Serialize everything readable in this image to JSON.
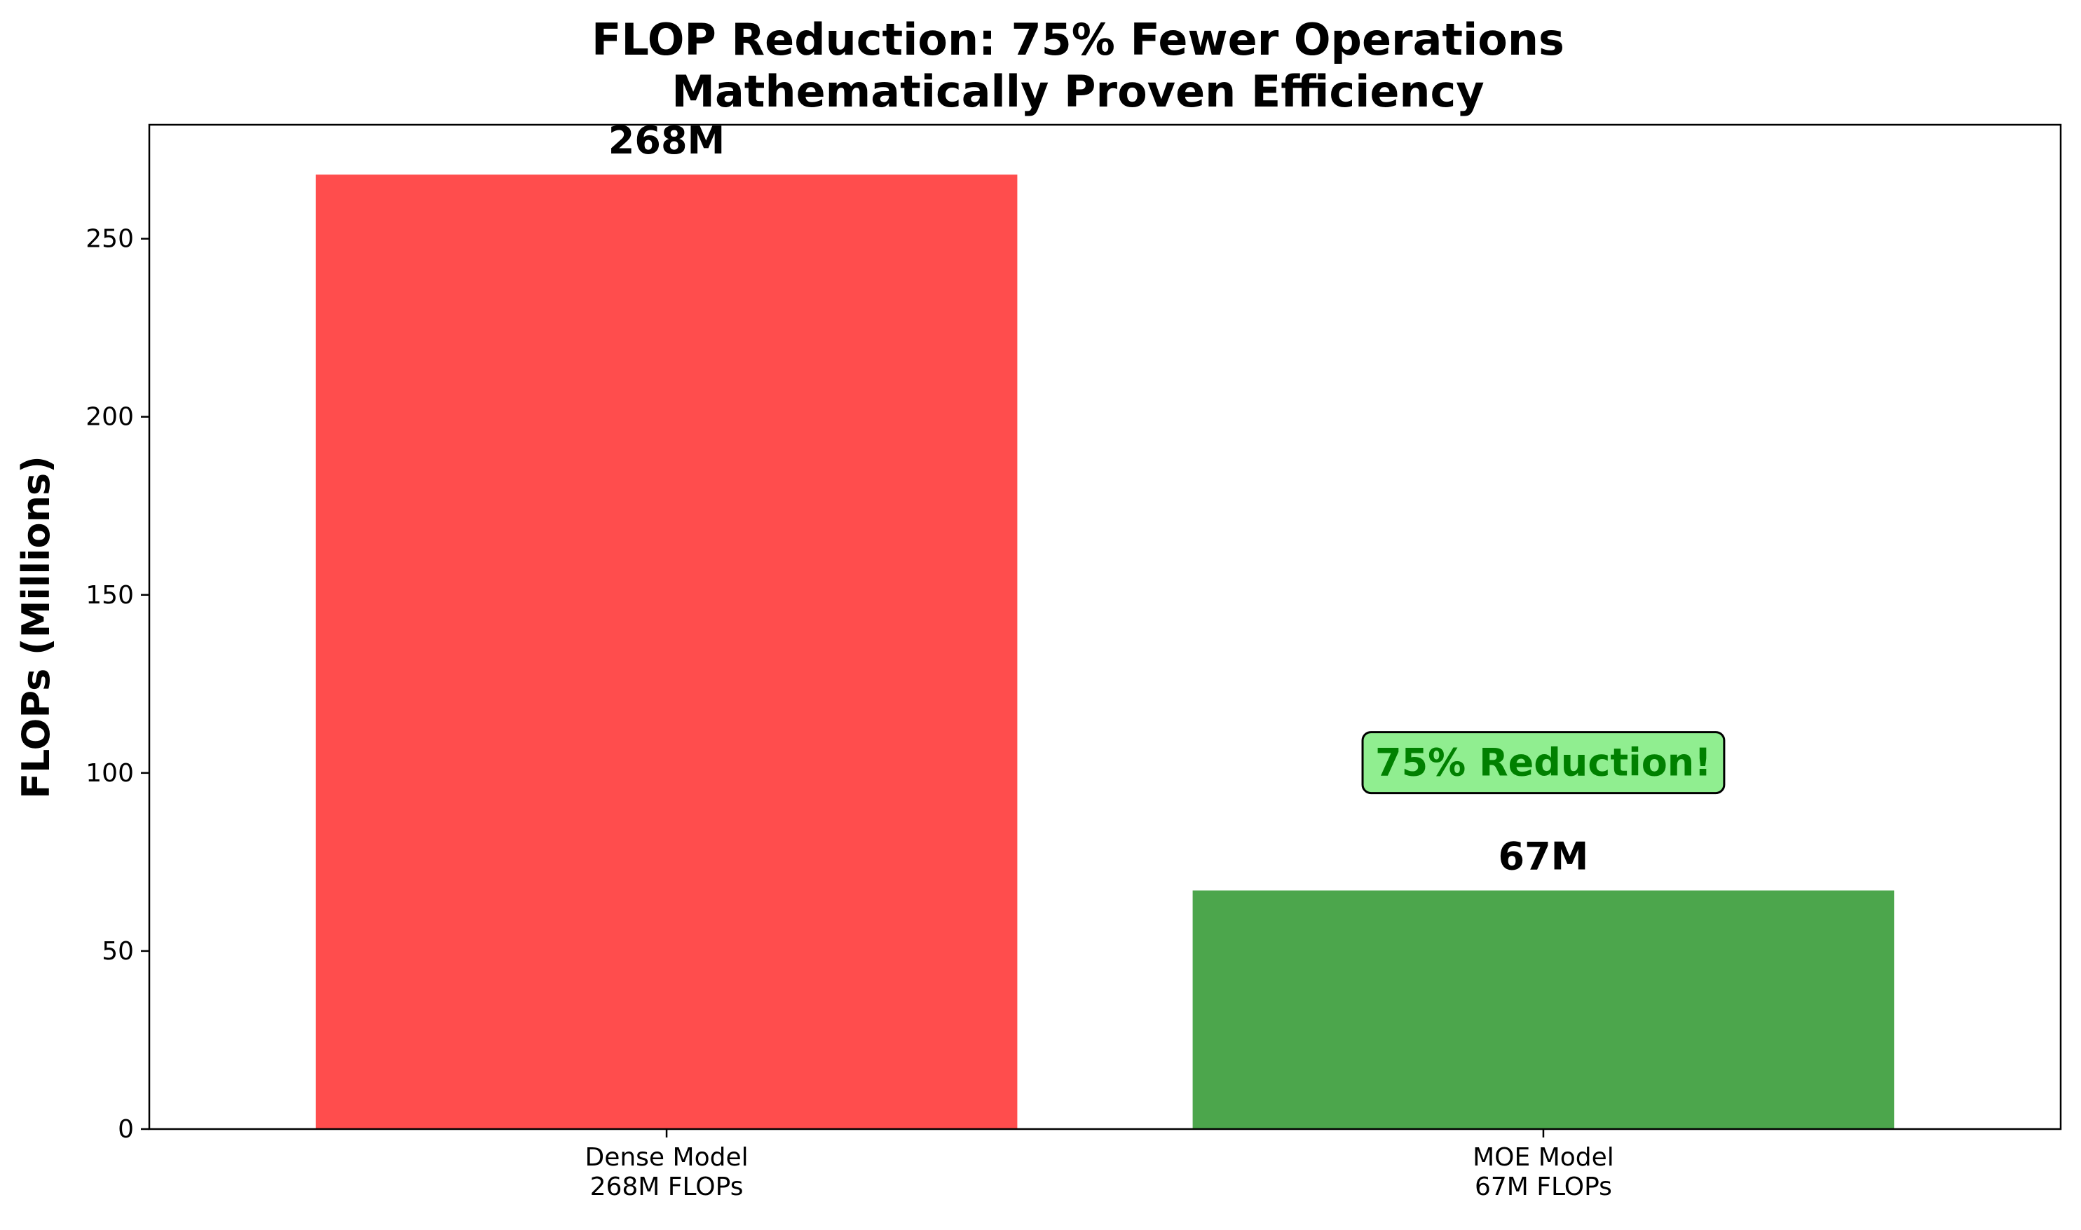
{
  "chart_data": {
    "type": "bar",
    "title_line1": "FLOP Reduction: 75% Fewer Operations",
    "title_line2": "Mathematically Proven Efficiency",
    "xlabel": "",
    "ylabel": "FLOPs (Millions)",
    "ylim": [
      0,
      282
    ],
    "yticks": [
      0,
      50,
      100,
      150,
      200,
      250
    ],
    "categories": [
      {
        "line1": "Dense Model",
        "line2": "268M FLOPs"
      },
      {
        "line1": "MOE Model",
        "line2": "67M FLOPs"
      }
    ],
    "values": [
      268,
      67
    ],
    "data_labels": [
      "268M",
      "67M"
    ],
    "colors": [
      "#ff4d4d",
      "#4ca64c"
    ],
    "annotation": {
      "text": "75% Reduction!",
      "x_category": 1,
      "y": 103,
      "text_color": "#008000",
      "box_color": "#90ee90"
    },
    "grid": false,
    "legend": "none"
  }
}
